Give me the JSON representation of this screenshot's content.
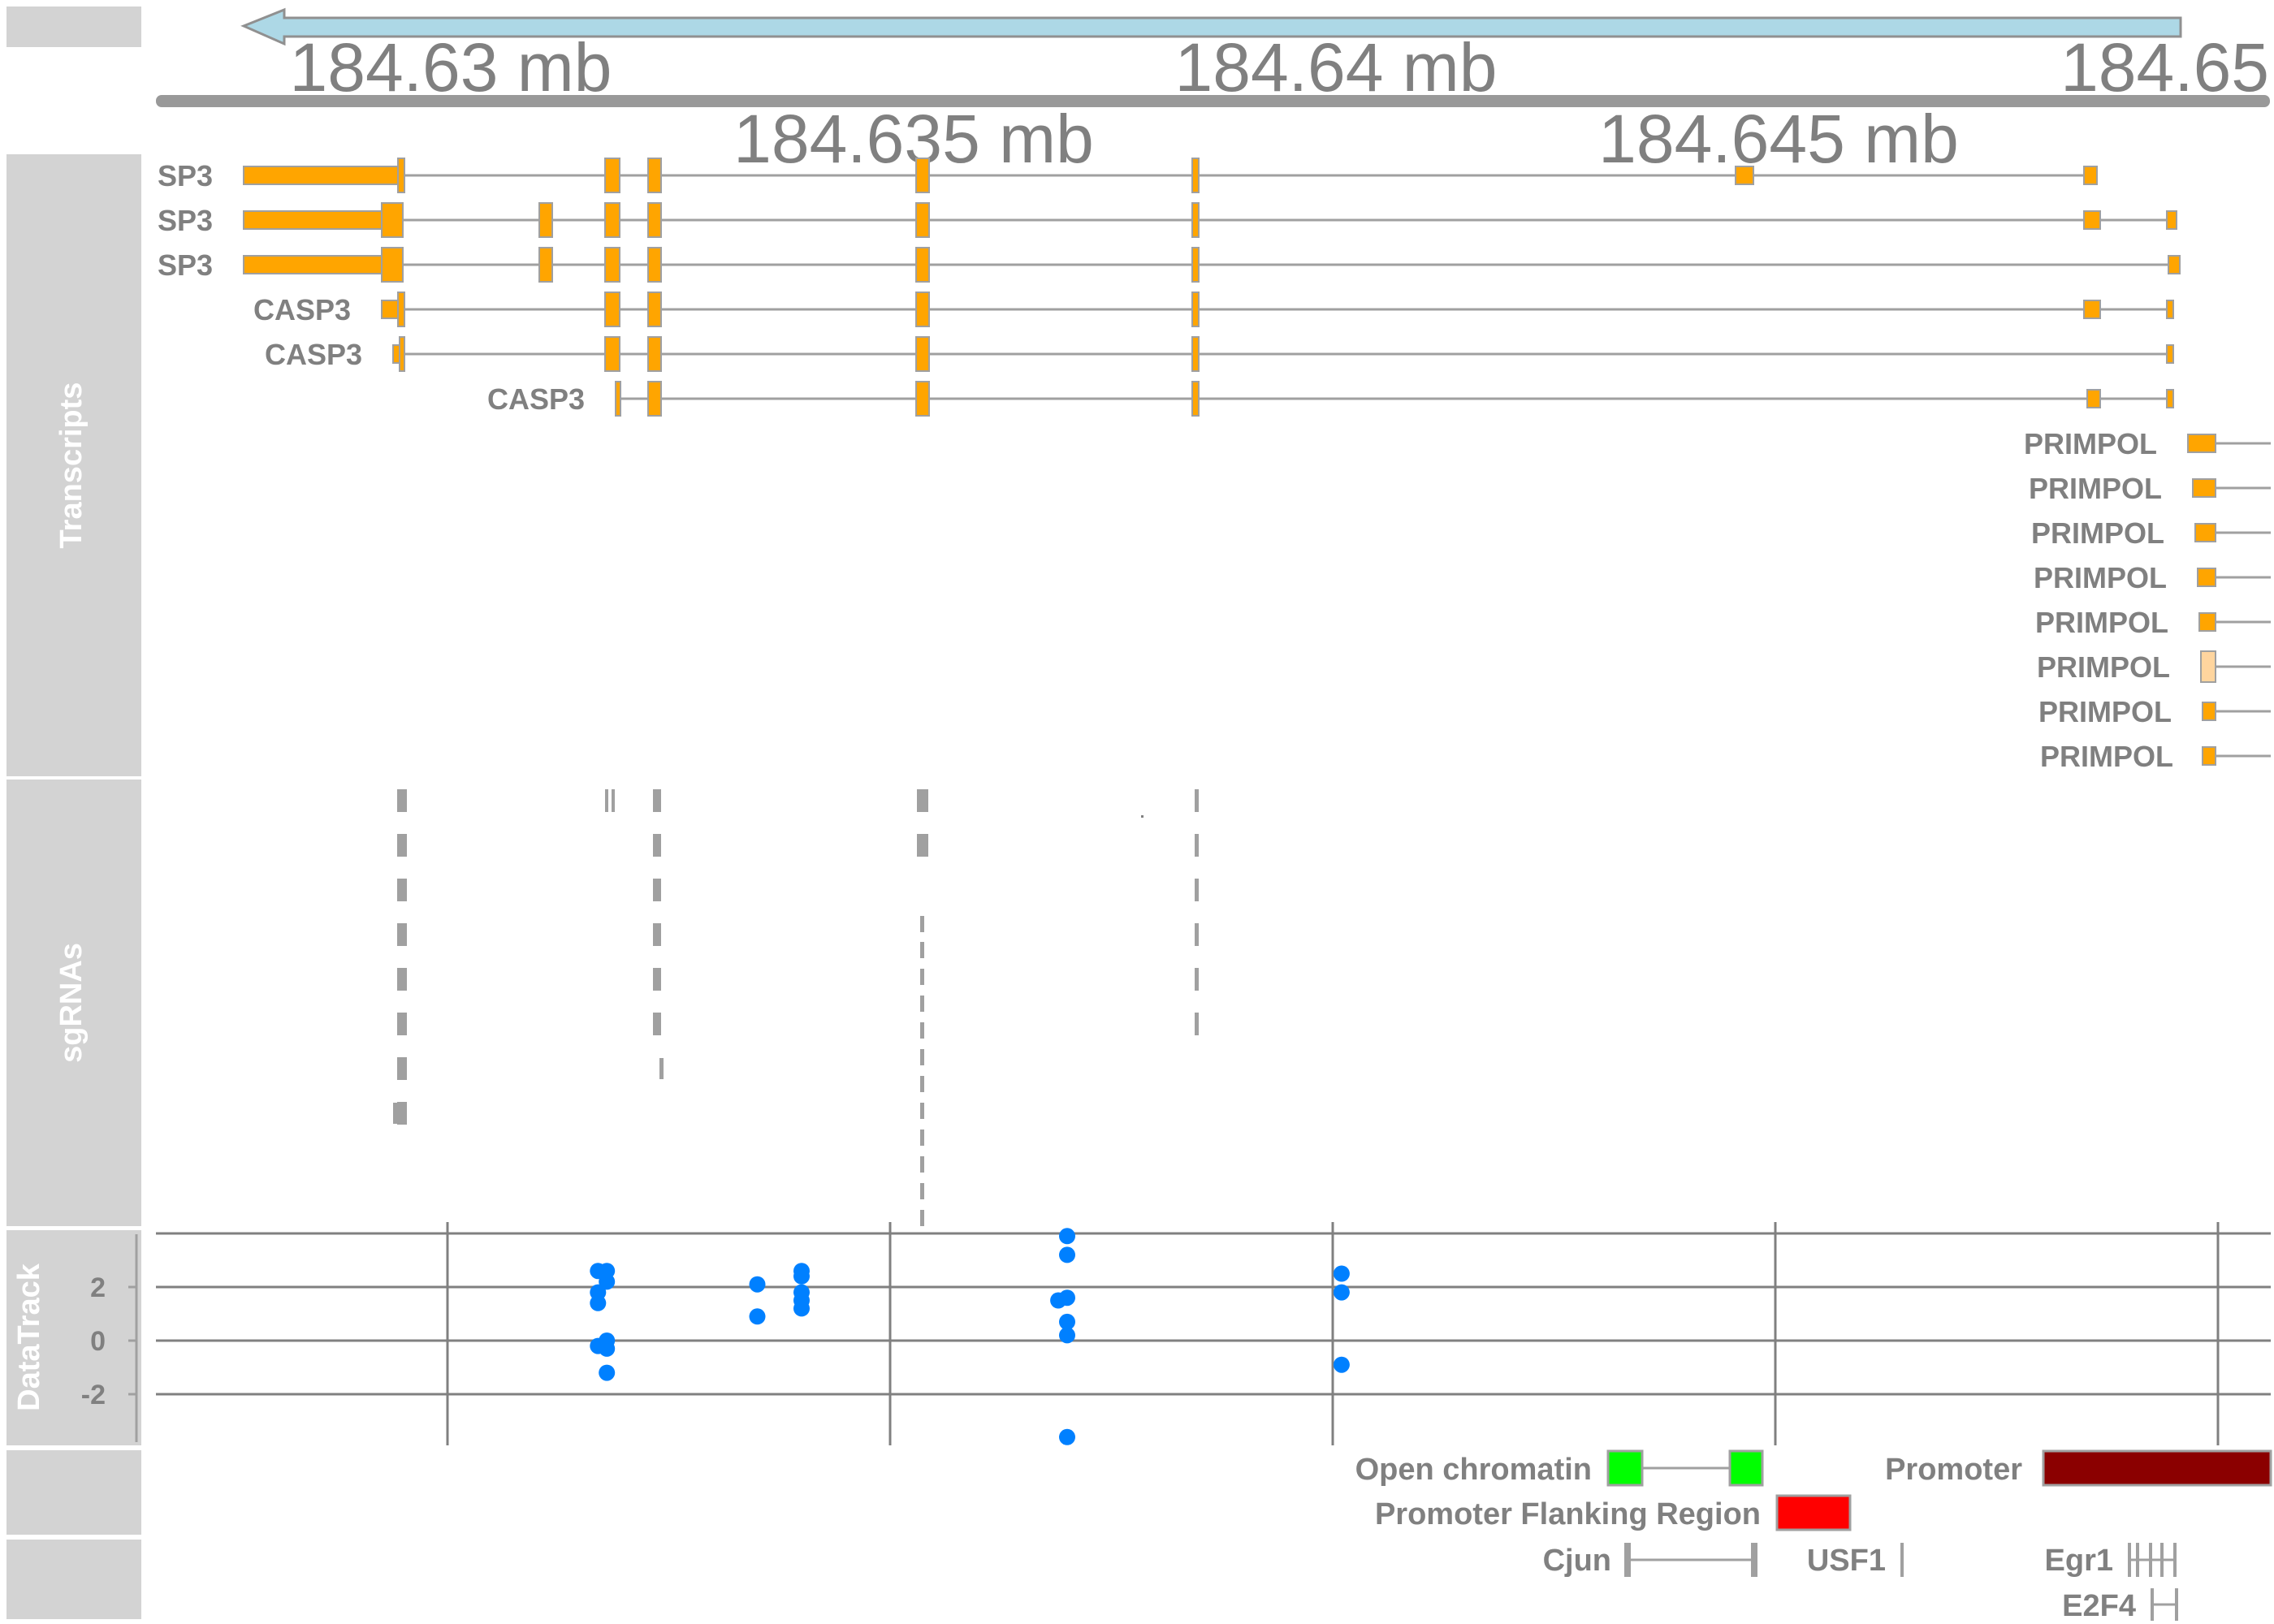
{
  "panels": {
    "transcripts": "Transcripts",
    "sgrnas": "sgRNAs",
    "datatrack": "DataTrack"
  },
  "axis": {
    "major_labels": [
      "184.63 mb",
      "184.64 mb",
      "184.65"
    ],
    "minor_labels": [
      "184.635 mb",
      "184.645 mb"
    ]
  },
  "colors": {
    "exon": "#FFA500",
    "exon_light": "#FFD59E",
    "intron": "#A0A0A0",
    "panel_bg": "#D3D3D3",
    "arrow": "#ADD8E6",
    "points": "#0080FF",
    "open_chromatin": "#00FF00",
    "flanking": "#FF0000",
    "promoter": "#8B0000"
  },
  "transcripts": [
    {
      "label": "SP3"
    },
    {
      "label": "SP3"
    },
    {
      "label": "SP3"
    },
    {
      "label": "CASP3"
    },
    {
      "label": "CASP3"
    },
    {
      "label": "CASP3"
    },
    {
      "label": "PRIMPOL"
    },
    {
      "label": "PRIMPOL"
    },
    {
      "label": "PRIMPOL"
    },
    {
      "label": "PRIMPOL"
    },
    {
      "label": "PRIMPOL"
    },
    {
      "label": "PRIMPOL"
    },
    {
      "label": "PRIMPOL"
    },
    {
      "label": "PRIMPOL"
    }
  ],
  "datatrack": {
    "y_ticks": [
      "2",
      "0",
      "-2"
    ]
  },
  "annotations": {
    "open_chromatin": "Open chromatin",
    "promoter": "Promoter",
    "flanking": "Promoter Flanking Region",
    "tfs": [
      "Cjun",
      "USF1",
      "Egr1",
      "E2F4"
    ]
  },
  "chart_data": {
    "type": "scatter",
    "xlabel": "",
    "ylabel": "DataTrack",
    "ylim": [
      -4,
      4
    ],
    "y_ticks": [
      2,
      0,
      -2
    ],
    "grid": true,
    "points": [
      {
        "x": 184.6317,
        "y": 2.6
      },
      {
        "x": 184.6318,
        "y": 2.6
      },
      {
        "x": 184.6318,
        "y": 2.2
      },
      {
        "x": 184.6317,
        "y": 1.8
      },
      {
        "x": 184.6317,
        "y": 1.4
      },
      {
        "x": 184.6317,
        "y": -0.2
      },
      {
        "x": 184.6318,
        "y": 0.0
      },
      {
        "x": 184.6318,
        "y": -0.3
      },
      {
        "x": 184.6318,
        "y": -1.2
      },
      {
        "x": 184.6335,
        "y": 2.1
      },
      {
        "x": 184.6335,
        "y": 0.9
      },
      {
        "x": 184.634,
        "y": 2.6
      },
      {
        "x": 184.634,
        "y": 2.4
      },
      {
        "x": 184.634,
        "y": 1.8
      },
      {
        "x": 184.634,
        "y": 1.5
      },
      {
        "x": 184.634,
        "y": 1.2
      },
      {
        "x": 184.637,
        "y": 3.9
      },
      {
        "x": 184.637,
        "y": 3.2
      },
      {
        "x": 184.637,
        "y": 1.6
      },
      {
        "x": 184.6369,
        "y": 1.5
      },
      {
        "x": 184.637,
        "y": 0.7
      },
      {
        "x": 184.637,
        "y": 0.2
      },
      {
        "x": 184.637,
        "y": -3.6
      },
      {
        "x": 184.6401,
        "y": 2.5
      },
      {
        "x": 184.6401,
        "y": 1.8
      },
      {
        "x": 184.6401,
        "y": -0.9
      }
    ]
  }
}
